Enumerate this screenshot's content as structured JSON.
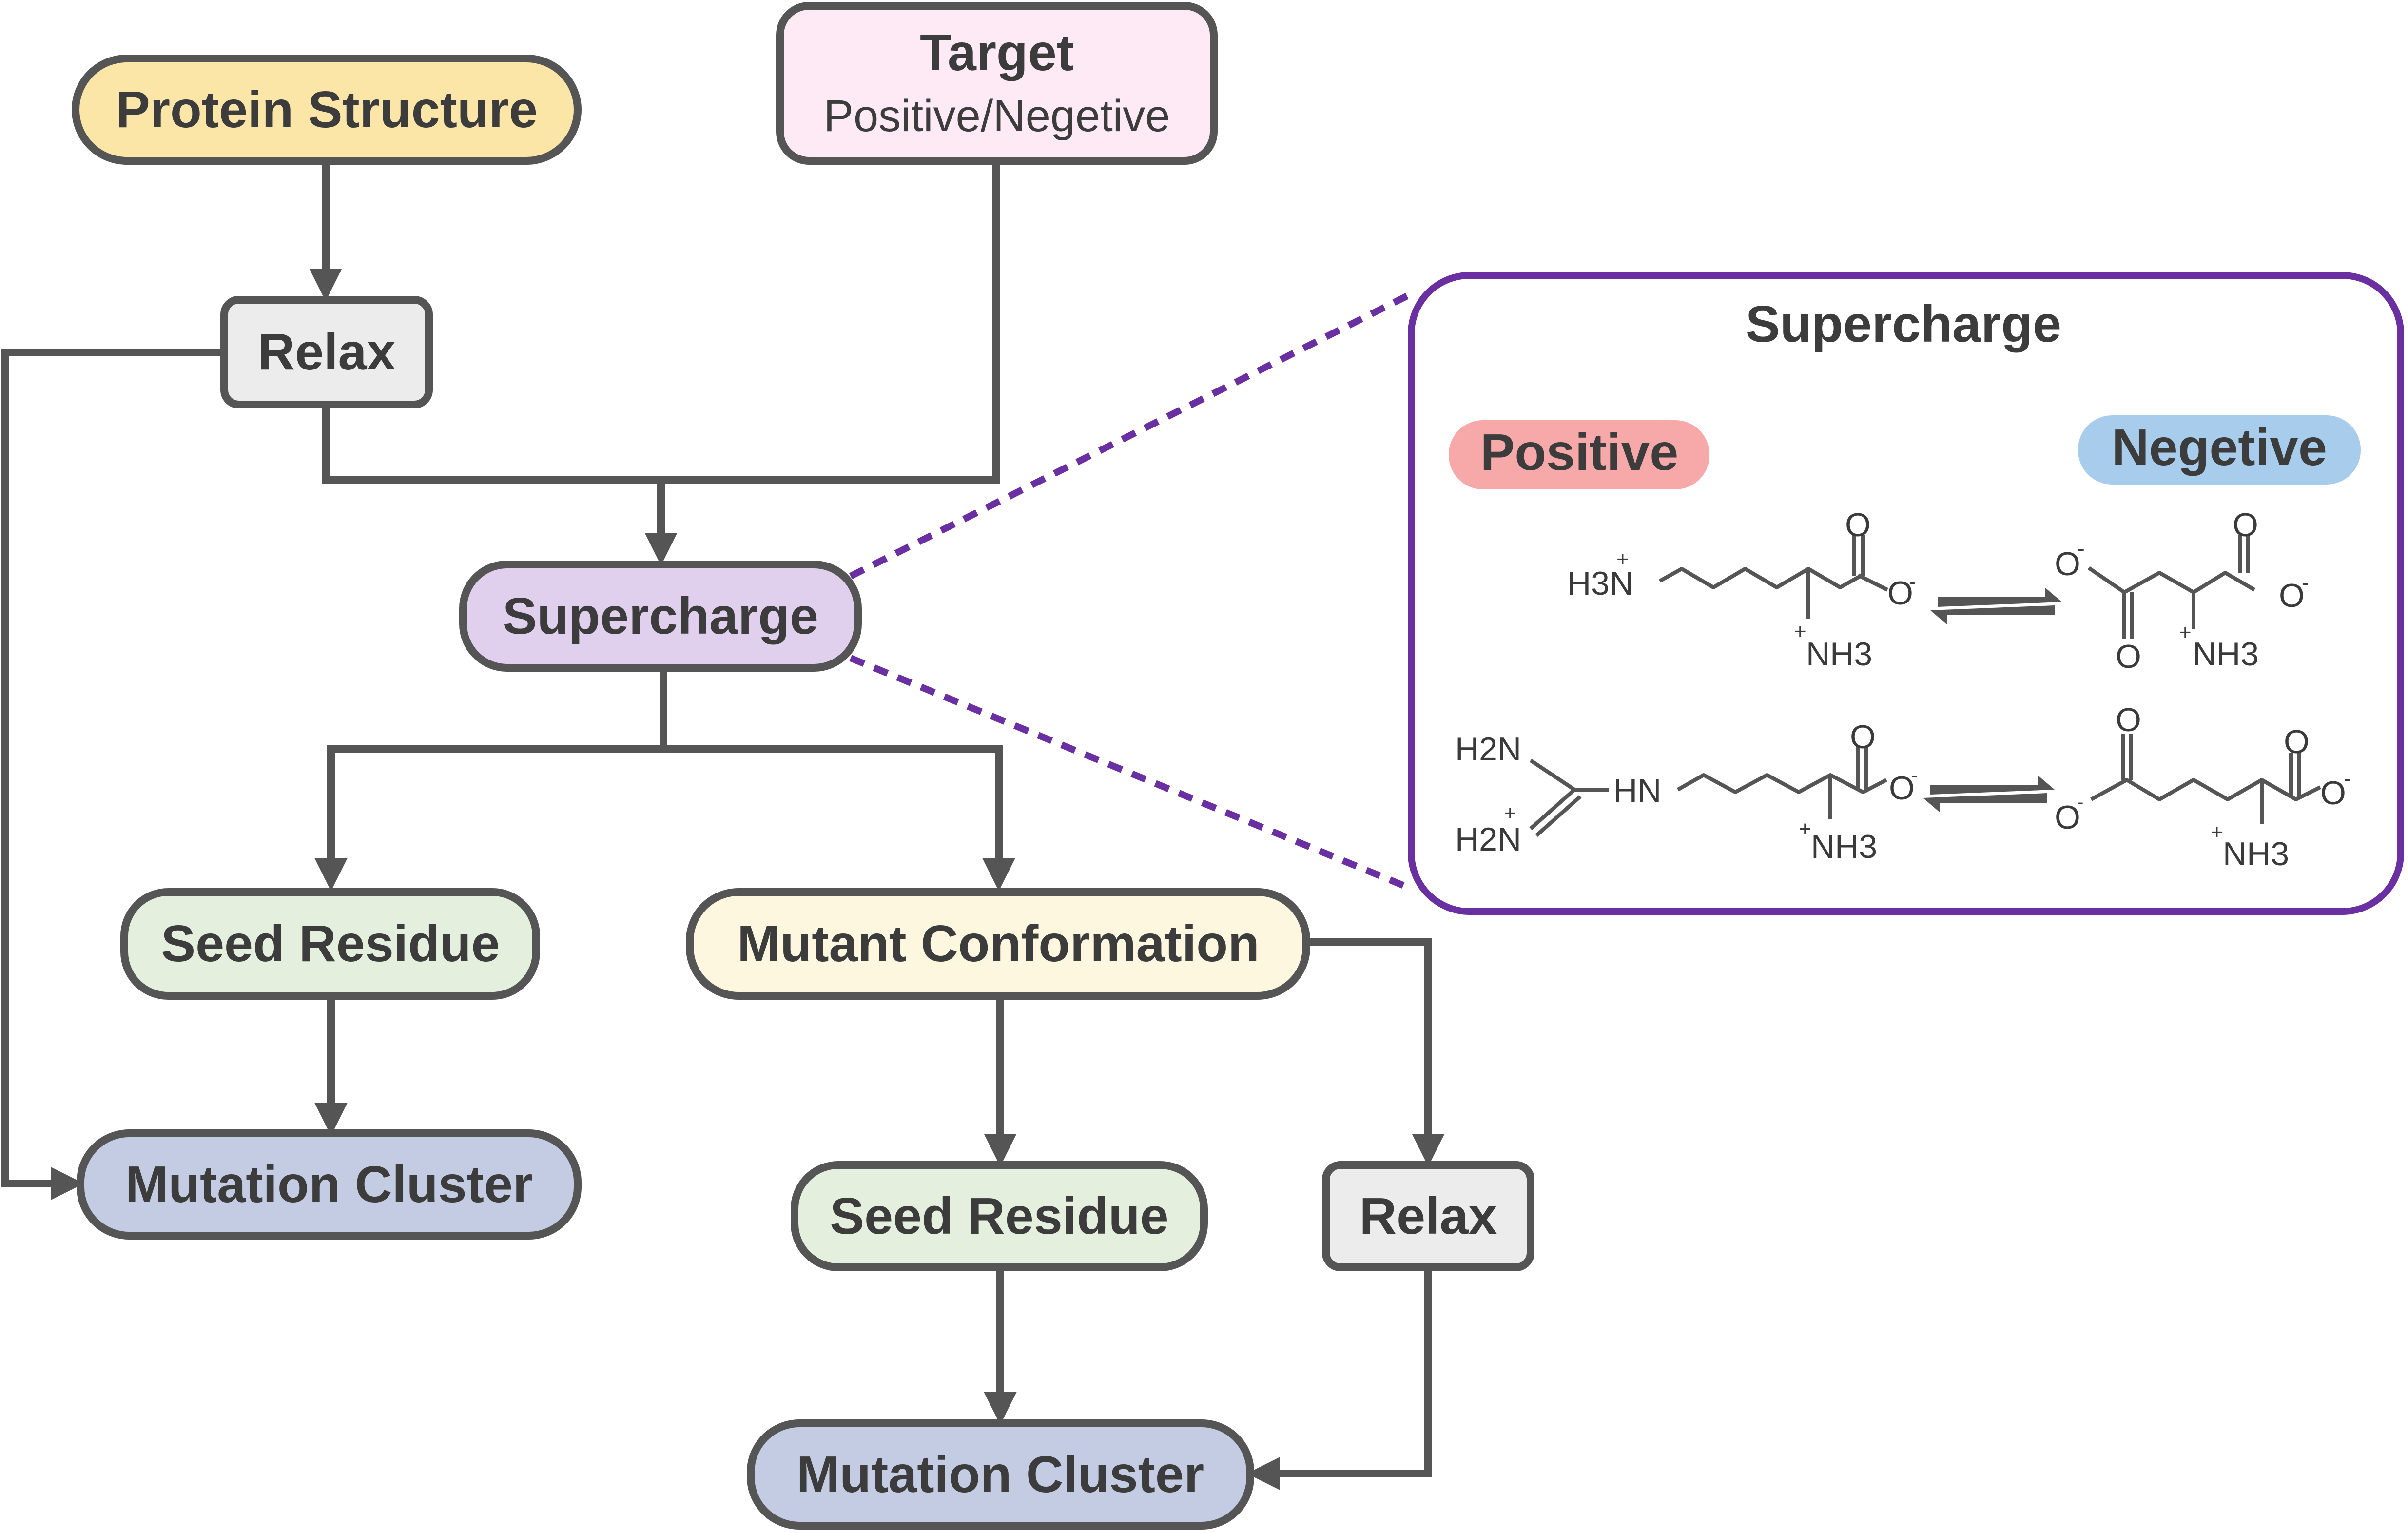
{
  "colors": {
    "stroke": "#555555",
    "yellow": "#fbe6a8",
    "pink": "#fdeaf5",
    "grey": "#ececec",
    "purple": "#e0d0ee",
    "green": "#e4f0dd",
    "cream": "#fdf7df",
    "blue": "#c3cce2",
    "inset_border": "#6a2fa0",
    "positive_badge": "#f7a8a8",
    "negative_badge": "#a8ccec"
  },
  "nodes": {
    "protein_structure": "Protein Structure",
    "target_title": "Target",
    "target_subtitle": "Positive/Negetive",
    "relax_top": "Relax",
    "supercharge": "Supercharge",
    "seed_residue_left": "Seed Residue",
    "mutant_conformation": "Mutant Conformation",
    "mutation_cluster_left": "Mutation Cluster",
    "seed_residue_bottom": "Seed Residue",
    "relax_bottom": "Relax",
    "mutation_cluster_bottom": "Mutation Cluster"
  },
  "inset": {
    "title": "Supercharge",
    "positive_label": "Positive",
    "negative_label": "Negetive",
    "lysine": {
      "amine_side": "H3N",
      "amine_alpha": "NH3",
      "carbonyl_o": "O",
      "carboxylate_o": "O"
    },
    "aspartate": {
      "left_o_minus": "O",
      "left_o": "O",
      "carbonyl_o": "O",
      "carboxylate_o": "O",
      "amine_alpha": "NH3"
    },
    "arginine": {
      "h2n_top": "H2N",
      "h2n_bottom": "H2N",
      "hn": "HN",
      "carbonyl_o": "O",
      "carboxylate_o": "O",
      "amine_alpha": "NH3"
    },
    "glutamate": {
      "top_o": "O",
      "left_o_minus": "O",
      "carbonyl_o": "O",
      "carboxylate_o": "O",
      "amine_alpha": "NH3"
    }
  }
}
